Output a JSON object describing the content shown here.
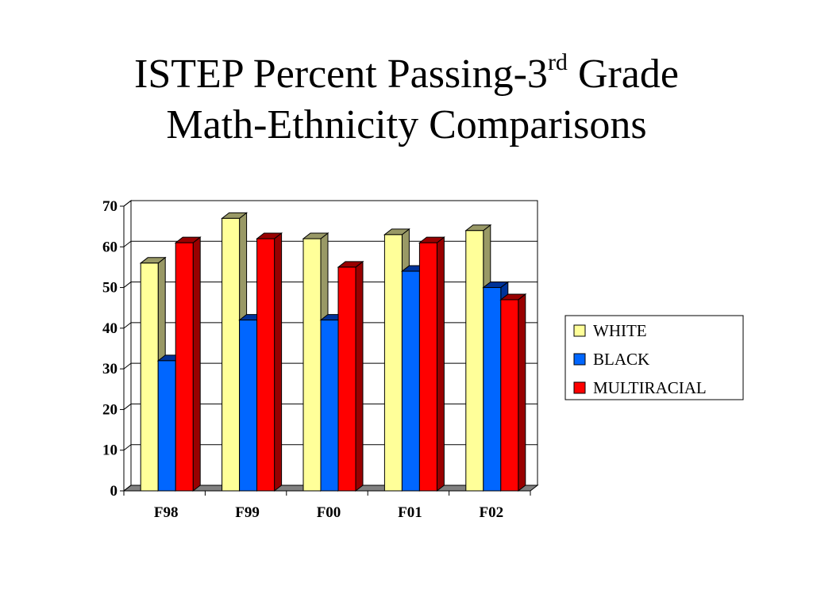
{
  "slide": {
    "title_line1_pre": "ISTEP Percent Passing-3",
    "title_line1_sup": "rd",
    "title_line1_post": " Grade",
    "title_line2": "Math-Ethnicity Comparisons"
  },
  "chart_data": {
    "type": "bar",
    "categories": [
      "F98",
      "F99",
      "F00",
      "F01",
      "F02"
    ],
    "series": [
      {
        "name": "WHITE",
        "values": [
          56,
          67,
          62,
          63,
          64
        ],
        "color": "#FFFF99",
        "side_color": "#999966"
      },
      {
        "name": "BLACK",
        "values": [
          32,
          42,
          42,
          54,
          50
        ],
        "color": "#0066FF",
        "side_color": "#003399"
      },
      {
        "name": "MULTIRACIAL",
        "values": [
          61,
          62,
          55,
          61,
          47
        ],
        "color": "#FF0000",
        "side_color": "#990000"
      }
    ],
    "ylim": [
      0,
      70
    ],
    "yticks": [
      0,
      10,
      20,
      30,
      40,
      50,
      60,
      70
    ],
    "grid": true,
    "legend_position": "right",
    "style": "3d-bar"
  }
}
